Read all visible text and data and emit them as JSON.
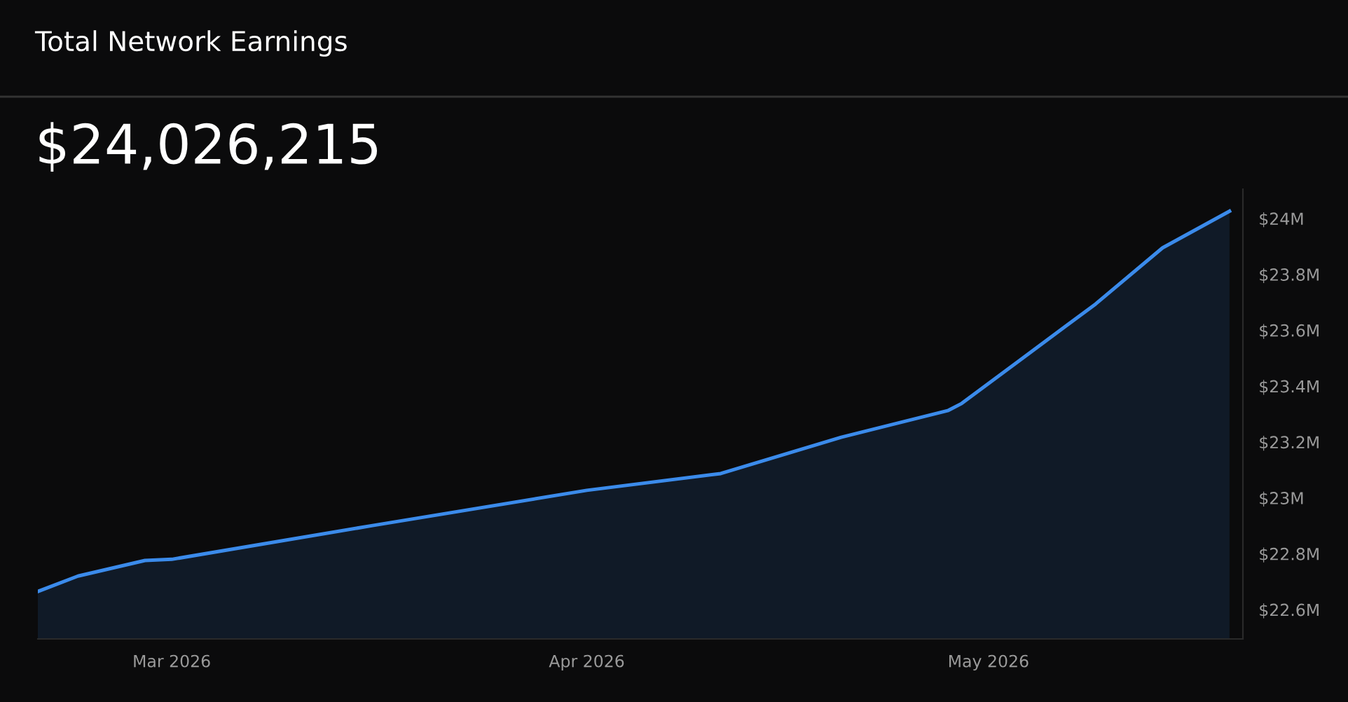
{
  "chart_data": {
    "type": "area",
    "title": "Total Network Earnings",
    "subtitle": "$24,026,215",
    "x": [
      "2026-02-19",
      "2026-02-22",
      "2026-02-27",
      "2026-03-01",
      "2026-03-16",
      "2026-04-01",
      "2026-04-11",
      "2026-04-20",
      "2026-04-28",
      "2026-04-29",
      "2026-05-09",
      "2026-05-14",
      "2026-05-19"
    ],
    "series": [
      {
        "color": "#3b8beb",
        "values": [
          22.665,
          22.72,
          22.776,
          22.78,
          22.901,
          23.027,
          23.087,
          23.217,
          23.313,
          23.338,
          23.694,
          23.895,
          24.026
        ]
      }
    ],
    "xlim": [
      "2026-02-19",
      "2026-05-20"
    ],
    "xticks": [
      {
        "value": "2026-03-01",
        "label": "Mar 2026"
      },
      {
        "value": "2026-04-01",
        "label": "Apr 2026"
      },
      {
        "value": "2026-05-01",
        "label": "May 2026"
      }
    ],
    "ylim": [
      22.495,
      24.105
    ],
    "yticks": [
      {
        "value": 22.6,
        "label": "$22.6M"
      },
      {
        "value": 22.8,
        "label": "$22.8M"
      },
      {
        "value": 23,
        "label": "$23M"
      },
      {
        "value": 23.2,
        "label": "$23.2M"
      },
      {
        "value": 23.4,
        "label": "$23.4M"
      },
      {
        "value": 23.6,
        "label": "$23.6M"
      },
      {
        "value": 23.8,
        "label": "$23.8M"
      },
      {
        "value": 24,
        "label": "$24M"
      }
    ],
    "grid": false,
    "legend": false
  }
}
